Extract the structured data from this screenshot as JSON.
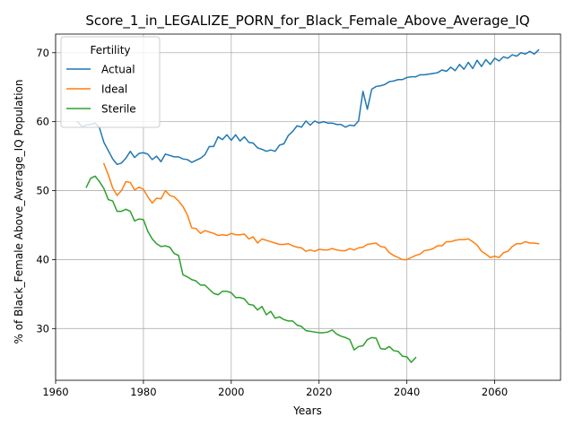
{
  "chart_data": {
    "type": "line",
    "title": "Score_1_in_LEGALIZE_PORN_for_Black_Female_Above_Average_IQ",
    "xlabel": "Years",
    "ylabel": "% of Black_Female Above_Average_IQ Population",
    "xlim": [
      1960,
      2075
    ],
    "ylim": [
      22.5,
      72.7
    ],
    "xticks": [
      1960,
      1980,
      2000,
      2020,
      2040,
      2060
    ],
    "yticks": [
      30,
      40,
      50,
      60,
      70
    ],
    "grid": true,
    "legend": {
      "title": "Fertility",
      "position": "top-left",
      "entries": [
        "Actual",
        "Ideal",
        "Sterile"
      ]
    },
    "series": [
      {
        "name": "Actual",
        "color": "#1f77b4",
        "points": [
          [
            1965,
            60.0
          ],
          [
            1966,
            59.3
          ],
          [
            1967,
            59.5
          ],
          [
            1968,
            59.6
          ],
          [
            1969,
            59.8
          ],
          [
            1970,
            59.1
          ],
          [
            1971,
            57.0
          ],
          [
            1972,
            55.8
          ],
          [
            1973,
            54.6
          ],
          [
            1974,
            53.8
          ],
          [
            1975,
            54.0
          ],
          [
            1976,
            54.7
          ],
          [
            1977,
            55.7
          ],
          [
            1978,
            54.8
          ],
          [
            1979,
            55.4
          ],
          [
            1980,
            55.5
          ],
          [
            1981,
            55.3
          ],
          [
            1982,
            54.5
          ],
          [
            1983,
            55.0
          ],
          [
            1984,
            54.2
          ],
          [
            1985,
            55.3
          ],
          [
            1986,
            55.1
          ],
          [
            1987,
            54.9
          ],
          [
            1988,
            54.9
          ],
          [
            1989,
            54.6
          ],
          [
            1990,
            54.5
          ],
          [
            1991,
            54.1
          ],
          [
            1992,
            54.4
          ],
          [
            1993,
            54.7
          ],
          [
            1994,
            55.2
          ],
          [
            1995,
            56.4
          ],
          [
            1996,
            56.4
          ],
          [
            1997,
            57.8
          ],
          [
            1998,
            57.4
          ],
          [
            1999,
            58.1
          ],
          [
            2000,
            57.3
          ],
          [
            2001,
            58.1
          ],
          [
            2002,
            57.2
          ],
          [
            2003,
            57.8
          ],
          [
            2004,
            57.0
          ],
          [
            2005,
            56.9
          ],
          [
            2006,
            56.2
          ],
          [
            2007,
            56.0
          ],
          [
            2008,
            55.7
          ],
          [
            2009,
            55.9
          ],
          [
            2010,
            55.7
          ],
          [
            2011,
            56.6
          ],
          [
            2012,
            56.8
          ],
          [
            2013,
            58.0
          ],
          [
            2014,
            58.6
          ],
          [
            2015,
            59.4
          ],
          [
            2016,
            59.2
          ],
          [
            2017,
            60.1
          ],
          [
            2018,
            59.5
          ],
          [
            2019,
            60.1
          ],
          [
            2020,
            59.8
          ],
          [
            2021,
            60.0
          ],
          [
            2022,
            59.8
          ],
          [
            2023,
            59.8
          ],
          [
            2024,
            59.6
          ],
          [
            2025,
            59.6
          ],
          [
            2026,
            59.2
          ],
          [
            2027,
            59.5
          ],
          [
            2028,
            59.4
          ],
          [
            2029,
            60.1
          ],
          [
            2030,
            64.4
          ],
          [
            2031,
            61.8
          ],
          [
            2032,
            64.7
          ],
          [
            2033,
            65.1
          ],
          [
            2034,
            65.2
          ],
          [
            2035,
            65.4
          ],
          [
            2036,
            65.8
          ],
          [
            2037,
            65.9
          ],
          [
            2038,
            66.1
          ],
          [
            2039,
            66.1
          ],
          [
            2040,
            66.4
          ],
          [
            2041,
            66.5
          ],
          [
            2042,
            66.5
          ],
          [
            2043,
            66.8
          ],
          [
            2044,
            66.8
          ],
          [
            2045,
            66.9
          ],
          [
            2046,
            67.0
          ],
          [
            2047,
            67.1
          ],
          [
            2048,
            67.5
          ],
          [
            2049,
            67.3
          ],
          [
            2050,
            67.9
          ],
          [
            2051,
            67.4
          ],
          [
            2052,
            68.3
          ],
          [
            2053,
            67.6
          ],
          [
            2054,
            68.6
          ],
          [
            2055,
            67.7
          ],
          [
            2056,
            68.9
          ],
          [
            2057,
            68.0
          ],
          [
            2058,
            69.0
          ],
          [
            2059,
            68.3
          ],
          [
            2060,
            69.2
          ],
          [
            2061,
            68.8
          ],
          [
            2062,
            69.4
          ],
          [
            2063,
            69.2
          ],
          [
            2064,
            69.7
          ],
          [
            2065,
            69.5
          ],
          [
            2066,
            70.0
          ],
          [
            2067,
            69.8
          ],
          [
            2068,
            70.2
          ],
          [
            2069,
            69.8
          ],
          [
            2070,
            70.4
          ]
        ]
      },
      {
        "name": "Ideal",
        "color": "#ff7f0e",
        "points": [
          [
            1971,
            53.9
          ],
          [
            1972,
            52.3
          ],
          [
            1973,
            50.4
          ],
          [
            1974,
            49.3
          ],
          [
            1975,
            50.0
          ],
          [
            1976,
            51.3
          ],
          [
            1977,
            51.2
          ],
          [
            1978,
            50.1
          ],
          [
            1979,
            50.5
          ],
          [
            1980,
            50.2
          ],
          [
            1981,
            49.1
          ],
          [
            1982,
            48.2
          ],
          [
            1983,
            48.9
          ],
          [
            1984,
            48.8
          ],
          [
            1985,
            50.0
          ],
          [
            1986,
            49.3
          ],
          [
            1987,
            49.1
          ],
          [
            1988,
            48.5
          ],
          [
            1989,
            47.7
          ],
          [
            1990,
            46.5
          ],
          [
            1991,
            44.6
          ],
          [
            1992,
            44.5
          ],
          [
            1993,
            43.8
          ],
          [
            1994,
            44.2
          ],
          [
            1995,
            44.0
          ],
          [
            1996,
            43.8
          ],
          [
            1997,
            43.5
          ],
          [
            1998,
            43.6
          ],
          [
            1999,
            43.5
          ],
          [
            2000,
            43.8
          ],
          [
            2001,
            43.6
          ],
          [
            2002,
            43.6
          ],
          [
            2003,
            43.7
          ],
          [
            2004,
            43.0
          ],
          [
            2005,
            43.3
          ],
          [
            2006,
            42.4
          ],
          [
            2007,
            43.0
          ],
          [
            2008,
            42.8
          ],
          [
            2009,
            42.6
          ],
          [
            2010,
            42.4
          ],
          [
            2011,
            42.2
          ],
          [
            2012,
            42.2
          ],
          [
            2013,
            42.3
          ],
          [
            2014,
            42.0
          ],
          [
            2015,
            41.8
          ],
          [
            2016,
            41.7
          ],
          [
            2017,
            41.2
          ],
          [
            2018,
            41.4
          ],
          [
            2019,
            41.2
          ],
          [
            2020,
            41.5
          ],
          [
            2021,
            41.4
          ],
          [
            2022,
            41.4
          ],
          [
            2023,
            41.6
          ],
          [
            2024,
            41.4
          ],
          [
            2025,
            41.3
          ],
          [
            2026,
            41.3
          ],
          [
            2027,
            41.6
          ],
          [
            2028,
            41.4
          ],
          [
            2029,
            41.7
          ],
          [
            2030,
            41.8
          ],
          [
            2031,
            42.2
          ],
          [
            2032,
            42.3
          ],
          [
            2033,
            42.4
          ],
          [
            2034,
            41.9
          ],
          [
            2035,
            41.8
          ],
          [
            2036,
            41.0
          ],
          [
            2037,
            40.6
          ],
          [
            2038,
            40.3
          ],
          [
            2039,
            40.0
          ],
          [
            2040,
            40.0
          ],
          [
            2041,
            40.3
          ],
          [
            2042,
            40.6
          ],
          [
            2043,
            40.8
          ],
          [
            2044,
            41.3
          ],
          [
            2045,
            41.4
          ],
          [
            2046,
            41.6
          ],
          [
            2047,
            42.0
          ],
          [
            2048,
            42.0
          ],
          [
            2049,
            42.6
          ],
          [
            2050,
            42.6
          ],
          [
            2051,
            42.8
          ],
          [
            2052,
            42.9
          ],
          [
            2053,
            42.9
          ],
          [
            2054,
            43.0
          ],
          [
            2055,
            42.6
          ],
          [
            2056,
            42.1
          ],
          [
            2057,
            41.2
          ],
          [
            2058,
            40.8
          ],
          [
            2059,
            40.3
          ],
          [
            2060,
            40.5
          ],
          [
            2061,
            40.3
          ],
          [
            2062,
            41.0
          ],
          [
            2063,
            41.2
          ],
          [
            2064,
            41.9
          ],
          [
            2065,
            42.3
          ],
          [
            2066,
            42.3
          ],
          [
            2067,
            42.6
          ],
          [
            2068,
            42.4
          ],
          [
            2069,
            42.4
          ],
          [
            2070,
            42.3
          ]
        ]
      },
      {
        "name": "Sterile",
        "color": "#2ca02c",
        "points": [
          [
            1967,
            50.5
          ],
          [
            1968,
            51.8
          ],
          [
            1969,
            52.1
          ],
          [
            1970,
            51.3
          ],
          [
            1971,
            50.3
          ],
          [
            1972,
            48.7
          ],
          [
            1973,
            48.5
          ],
          [
            1974,
            47.0
          ],
          [
            1975,
            47.0
          ],
          [
            1976,
            47.3
          ],
          [
            1977,
            47.0
          ],
          [
            1978,
            45.6
          ],
          [
            1979,
            45.9
          ],
          [
            1980,
            45.8
          ],
          [
            1981,
            44.1
          ],
          [
            1982,
            43.0
          ],
          [
            1983,
            42.3
          ],
          [
            1984,
            41.9
          ],
          [
            1985,
            42.0
          ],
          [
            1986,
            41.8
          ],
          [
            1987,
            40.9
          ],
          [
            1988,
            40.6
          ],
          [
            1989,
            37.8
          ],
          [
            1990,
            37.5
          ],
          [
            1991,
            37.1
          ],
          [
            1992,
            36.9
          ],
          [
            1993,
            36.3
          ],
          [
            1994,
            36.3
          ],
          [
            1995,
            35.7
          ],
          [
            1996,
            35.1
          ],
          [
            1997,
            34.9
          ],
          [
            1998,
            35.4
          ],
          [
            1999,
            35.4
          ],
          [
            2000,
            35.2
          ],
          [
            2001,
            34.5
          ],
          [
            2002,
            34.5
          ],
          [
            2003,
            34.3
          ],
          [
            2004,
            33.5
          ],
          [
            2005,
            33.4
          ],
          [
            2006,
            32.7
          ],
          [
            2007,
            33.2
          ],
          [
            2008,
            32.0
          ],
          [
            2009,
            32.5
          ],
          [
            2010,
            31.5
          ],
          [
            2011,
            31.7
          ],
          [
            2012,
            31.3
          ],
          [
            2013,
            31.1
          ],
          [
            2014,
            31.1
          ],
          [
            2015,
            30.5
          ],
          [
            2016,
            30.3
          ],
          [
            2017,
            29.7
          ],
          [
            2018,
            29.6
          ],
          [
            2019,
            29.5
          ],
          [
            2020,
            29.4
          ],
          [
            2021,
            29.4
          ],
          [
            2022,
            29.5
          ],
          [
            2023,
            29.8
          ],
          [
            2024,
            29.2
          ],
          [
            2025,
            28.9
          ],
          [
            2026,
            28.7
          ],
          [
            2027,
            28.4
          ],
          [
            2028,
            26.9
          ],
          [
            2029,
            27.4
          ],
          [
            2030,
            27.5
          ],
          [
            2031,
            28.4
          ],
          [
            2032,
            28.7
          ],
          [
            2033,
            28.6
          ],
          [
            2034,
            27.1
          ],
          [
            2035,
            27.0
          ],
          [
            2036,
            27.4
          ],
          [
            2037,
            26.8
          ],
          [
            2038,
            26.7
          ],
          [
            2039,
            26.0
          ],
          [
            2040,
            25.9
          ],
          [
            2041,
            25.1
          ],
          [
            2042,
            25.8
          ]
        ]
      }
    ]
  }
}
